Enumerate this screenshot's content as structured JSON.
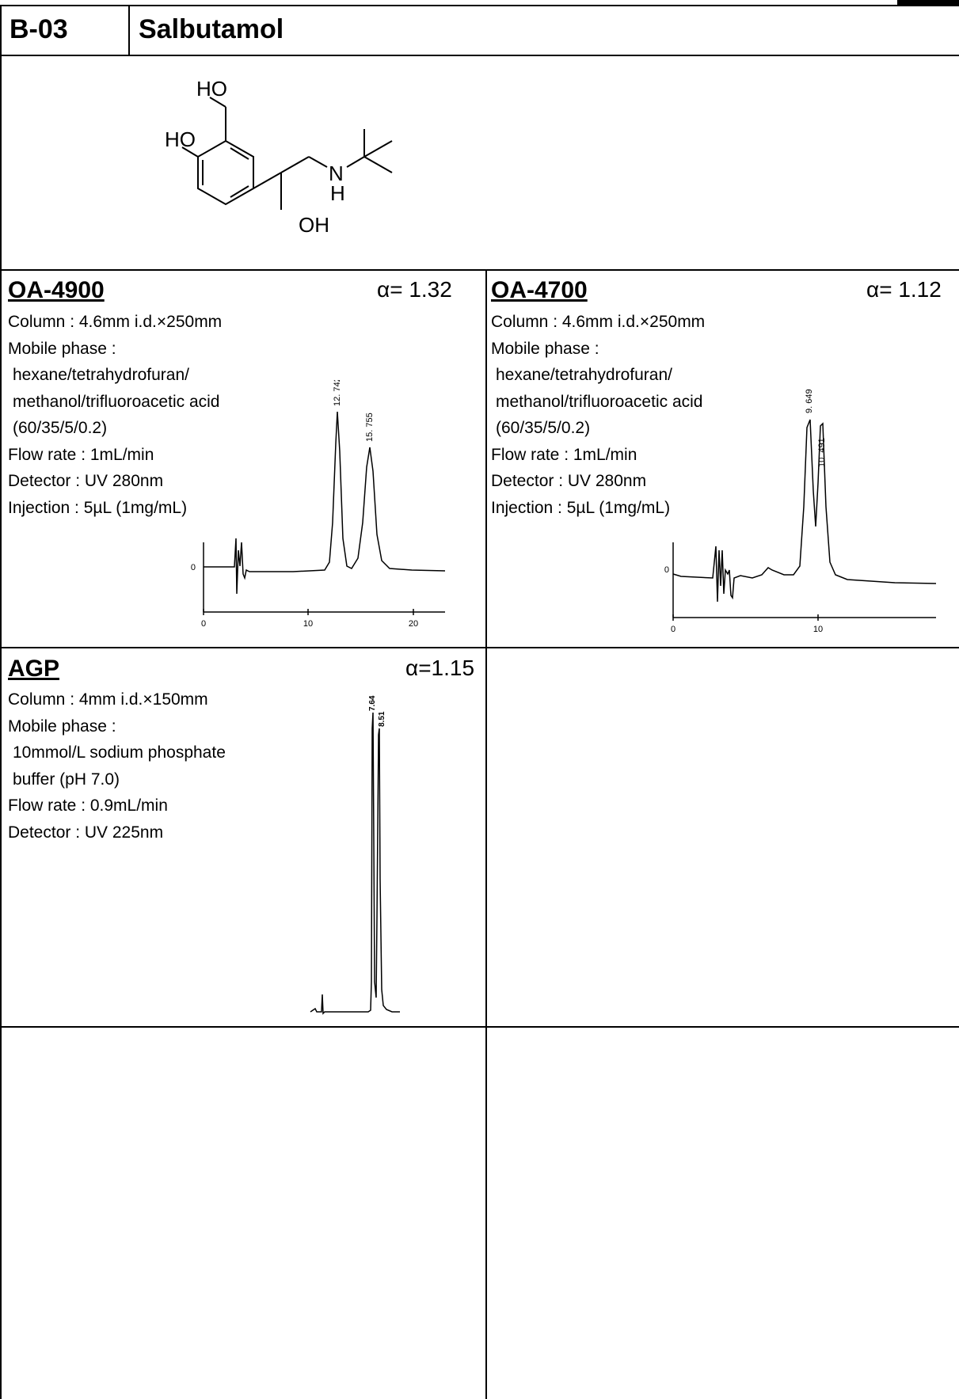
{
  "header": {
    "code": "B-03",
    "compound": "Salbutamol"
  },
  "structure": {
    "labels": {
      "ho_top": "HO",
      "ho_ring": "HO",
      "n": "N",
      "nh": "H",
      "oh": "OH"
    }
  },
  "panels": [
    {
      "column_name": "OA-4900",
      "alpha": "α= 1.32",
      "conditions": [
        "Column : 4.6mm i.d.×250mm",
        "Mobile phase :",
        " hexane/tetrahydrofuran/",
        " methanol/trifluoroacetic acid",
        " (60/35/5/0.2)",
        "Flow rate : 1mL/min",
        "Detector : UV 280nm",
        "Injection : 5µL (1mg/mL)"
      ],
      "chromatogram": {
        "peak_labels": [
          "12. 742",
          "15. 755"
        ],
        "axis_ticks": [
          "0",
          "10",
          "20"
        ],
        "zero_label": "0"
      }
    },
    {
      "column_name": "OA-4700",
      "alpha": "α= 1.12",
      "conditions": [
        "Column : 4.6mm i.d.×250mm",
        "Mobile phase :",
        " hexane/tetrahydrofuran/",
        " methanol/trifluoroacetic acid",
        " (60/35/5/0.2)",
        "Flow rate : 1mL/min",
        "Detector : UV 280nm",
        "Injection : 5µL (1mg/mL)"
      ],
      "chromatogram": {
        "peak_labels": [
          "9. 649",
          "10. 491"
        ],
        "axis_ticks": [
          "0",
          "10"
        ],
        "zero_label": "0"
      }
    },
    {
      "column_name": "AGP",
      "alpha": "α=1.15",
      "conditions": [
        "Column : 4mm i.d.×150mm",
        "Mobile phase :",
        " 10mmol/L sodium phosphate",
        " buffer (pH 7.0)",
        "Flow rate : 0.9mL/min",
        "Detector : UV 225nm"
      ],
      "chromatogram": {
        "peak_labels": [
          "7.64",
          "8.51"
        ]
      }
    }
  ]
}
